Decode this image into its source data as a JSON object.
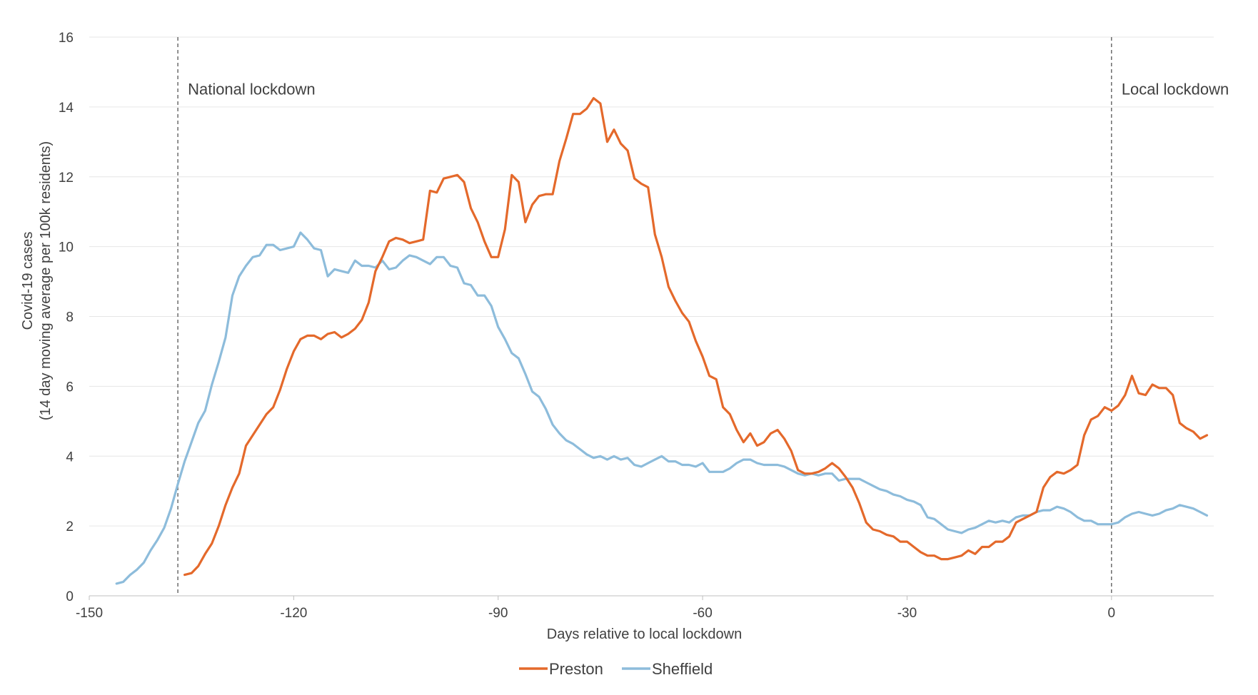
{
  "chart_data": {
    "type": "line",
    "title": "",
    "xlabel": "Days relative to local lockdown",
    "ylabel_line1": "Covid-19 cases",
    "ylabel_line2": "(14 day moving average per 100k residents)",
    "xlim": [
      -150,
      15
    ],
    "ylim": [
      0,
      16
    ],
    "x_ticks": [
      -150,
      -120,
      -90,
      -60,
      -30,
      0
    ],
    "y_ticks": [
      0,
      2,
      4,
      6,
      8,
      10,
      12,
      14,
      16
    ],
    "grid": true,
    "legend_position": "bottom-center",
    "annotations": [
      {
        "x": -137,
        "text": "National lockdown",
        "style": "dashed-vertical-line"
      },
      {
        "x": 0,
        "text": "Local lockdown",
        "style": "dashed-vertical-line"
      }
    ],
    "series": [
      {
        "name": "Preston",
        "color": "#E4692B",
        "points": [
          [
            -136,
            0.6
          ],
          [
            -135,
            0.65
          ],
          [
            -134,
            0.85
          ],
          [
            -133,
            1.2
          ],
          [
            -132,
            1.5
          ],
          [
            -131,
            2.0
          ],
          [
            -130,
            2.6
          ],
          [
            -129,
            3.1
          ],
          [
            -128,
            3.5
          ],
          [
            -127,
            4.3
          ],
          [
            -126,
            4.6
          ],
          [
            -125,
            4.9
          ],
          [
            -124,
            5.2
          ],
          [
            -123,
            5.4
          ],
          [
            -122,
            5.9
          ],
          [
            -121,
            6.5
          ],
          [
            -120,
            7.0
          ],
          [
            -119,
            7.35
          ],
          [
            -118,
            7.45
          ],
          [
            -117,
            7.45
          ],
          [
            -116,
            7.35
          ],
          [
            -115,
            7.5
          ],
          [
            -114,
            7.55
          ],
          [
            -113,
            7.4
          ],
          [
            -112,
            7.5
          ],
          [
            -111,
            7.65
          ],
          [
            -110,
            7.9
          ],
          [
            -109,
            8.4
          ],
          [
            -108,
            9.3
          ],
          [
            -107,
            9.7
          ],
          [
            -106,
            10.15
          ],
          [
            -105,
            10.25
          ],
          [
            -104,
            10.2
          ],
          [
            -103,
            10.1
          ],
          [
            -102,
            10.15
          ],
          [
            -101,
            10.2
          ],
          [
            -100,
            11.6
          ],
          [
            -99,
            11.55
          ],
          [
            -98,
            11.95
          ],
          [
            -97,
            12.0
          ],
          [
            -96,
            12.05
          ],
          [
            -95,
            11.85
          ],
          [
            -94,
            11.1
          ],
          [
            -93,
            10.7
          ],
          [
            -92,
            10.15
          ],
          [
            -91,
            9.7
          ],
          [
            -90,
            9.7
          ],
          [
            -89,
            10.5
          ],
          [
            -88,
            12.05
          ],
          [
            -87,
            11.85
          ],
          [
            -86,
            10.7
          ],
          [
            -85,
            11.2
          ],
          [
            -84,
            11.45
          ],
          [
            -83,
            11.5
          ],
          [
            -82,
            11.5
          ],
          [
            -81,
            12.45
          ],
          [
            -80,
            13.1
          ],
          [
            -79,
            13.8
          ],
          [
            -78,
            13.8
          ],
          [
            -77,
            13.95
          ],
          [
            -76,
            14.25
          ],
          [
            -75,
            14.1
          ],
          [
            -74,
            13.0
          ],
          [
            -73,
            13.35
          ],
          [
            -72,
            12.95
          ],
          [
            -71,
            12.75
          ],
          [
            -70,
            11.95
          ],
          [
            -69,
            11.8
          ],
          [
            -68,
            11.7
          ],
          [
            -67,
            10.35
          ],
          [
            -66,
            9.7
          ],
          [
            -65,
            8.85
          ],
          [
            -64,
            8.45
          ],
          [
            -63,
            8.1
          ],
          [
            -62,
            7.85
          ],
          [
            -61,
            7.3
          ],
          [
            -60,
            6.85
          ],
          [
            -59,
            6.3
          ],
          [
            -58,
            6.2
          ],
          [
            -57,
            5.4
          ],
          [
            -56,
            5.2
          ],
          [
            -55,
            4.75
          ],
          [
            -54,
            4.4
          ],
          [
            -53,
            4.65
          ],
          [
            -52,
            4.3
          ],
          [
            -51,
            4.4
          ],
          [
            -50,
            4.65
          ],
          [
            -49,
            4.75
          ],
          [
            -48,
            4.5
          ],
          [
            -47,
            4.15
          ],
          [
            -46,
            3.6
          ],
          [
            -45,
            3.5
          ],
          [
            -44,
            3.5
          ],
          [
            -43,
            3.55
          ],
          [
            -42,
            3.65
          ],
          [
            -41,
            3.8
          ],
          [
            -40,
            3.65
          ],
          [
            -39,
            3.4
          ],
          [
            -38,
            3.1
          ],
          [
            -37,
            2.65
          ],
          [
            -36,
            2.1
          ],
          [
            -35,
            1.9
          ],
          [
            -34,
            1.85
          ],
          [
            -33,
            1.75
          ],
          [
            -32,
            1.7
          ],
          [
            -31,
            1.55
          ],
          [
            -30,
            1.55
          ],
          [
            -29,
            1.4
          ],
          [
            -28,
            1.25
          ],
          [
            -27,
            1.15
          ],
          [
            -26,
            1.15
          ],
          [
            -25,
            1.05
          ],
          [
            -24,
            1.05
          ],
          [
            -23,
            1.1
          ],
          [
            -22,
            1.15
          ],
          [
            -21,
            1.3
          ],
          [
            -20,
            1.2
          ],
          [
            -19,
            1.4
          ],
          [
            -18,
            1.4
          ],
          [
            -17,
            1.55
          ],
          [
            -16,
            1.55
          ],
          [
            -15,
            1.7
          ],
          [
            -14,
            2.1
          ],
          [
            -13,
            2.2
          ],
          [
            -12,
            2.3
          ],
          [
            -11,
            2.4
          ],
          [
            -10,
            3.1
          ],
          [
            -9,
            3.4
          ],
          [
            -8,
            3.55
          ],
          [
            -7,
            3.5
          ],
          [
            -6,
            3.6
          ],
          [
            -5,
            3.75
          ],
          [
            -4,
            4.6
          ],
          [
            -3,
            5.05
          ],
          [
            -2,
            5.15
          ],
          [
            -1,
            5.4
          ],
          [
            0,
            5.3
          ],
          [
            1,
            5.45
          ],
          [
            2,
            5.75
          ],
          [
            3,
            6.3
          ],
          [
            4,
            5.8
          ],
          [
            5,
            5.75
          ],
          [
            6,
            6.05
          ],
          [
            7,
            5.95
          ],
          [
            8,
            5.95
          ],
          [
            9,
            5.75
          ],
          [
            10,
            4.95
          ],
          [
            11,
            4.8
          ],
          [
            12,
            4.7
          ],
          [
            13,
            4.5
          ],
          [
            14,
            4.6
          ]
        ]
      },
      {
        "name": "Sheffield",
        "color": "#8DBCDB",
        "points": [
          [
            -146,
            0.35
          ],
          [
            -145,
            0.4
          ],
          [
            -144,
            0.6
          ],
          [
            -143,
            0.75
          ],
          [
            -142,
            0.95
          ],
          [
            -141,
            1.3
          ],
          [
            -140,
            1.6
          ],
          [
            -139,
            1.95
          ],
          [
            -138,
            2.5
          ],
          [
            -137,
            3.2
          ],
          [
            -136,
            3.85
          ],
          [
            -135,
            4.4
          ],
          [
            -134,
            4.95
          ],
          [
            -133,
            5.3
          ],
          [
            -132,
            6.05
          ],
          [
            -131,
            6.7
          ],
          [
            -130,
            7.4
          ],
          [
            -129,
            8.6
          ],
          [
            -128,
            9.15
          ],
          [
            -127,
            9.45
          ],
          [
            -126,
            9.7
          ],
          [
            -125,
            9.75
          ],
          [
            -124,
            10.05
          ],
          [
            -123,
            10.05
          ],
          [
            -122,
            9.9
          ],
          [
            -121,
            9.95
          ],
          [
            -120,
            10.0
          ],
          [
            -119,
            10.4
          ],
          [
            -118,
            10.2
          ],
          [
            -117,
            9.95
          ],
          [
            -116,
            9.9
          ],
          [
            -115,
            9.15
          ],
          [
            -114,
            9.35
          ],
          [
            -113,
            9.3
          ],
          [
            -112,
            9.25
          ],
          [
            -111,
            9.6
          ],
          [
            -110,
            9.45
          ],
          [
            -109,
            9.45
          ],
          [
            -108,
            9.4
          ],
          [
            -107,
            9.6
          ],
          [
            -106,
            9.35
          ],
          [
            -105,
            9.4
          ],
          [
            -104,
            9.6
          ],
          [
            -103,
            9.75
          ],
          [
            -102,
            9.7
          ],
          [
            -101,
            9.6
          ],
          [
            -100,
            9.5
          ],
          [
            -99,
            9.7
          ],
          [
            -98,
            9.7
          ],
          [
            -97,
            9.45
          ],
          [
            -96,
            9.4
          ],
          [
            -95,
            8.95
          ],
          [
            -94,
            8.9
          ],
          [
            -93,
            8.6
          ],
          [
            -92,
            8.6
          ],
          [
            -91,
            8.3
          ],
          [
            -90,
            7.7
          ],
          [
            -89,
            7.35
          ],
          [
            -88,
            6.95
          ],
          [
            -87,
            6.8
          ],
          [
            -86,
            6.35
          ],
          [
            -85,
            5.85
          ],
          [
            -84,
            5.7
          ],
          [
            -83,
            5.35
          ],
          [
            -82,
            4.9
          ],
          [
            -81,
            4.65
          ],
          [
            -80,
            4.45
          ],
          [
            -79,
            4.35
          ],
          [
            -78,
            4.2
          ],
          [
            -77,
            4.05
          ],
          [
            -76,
            3.95
          ],
          [
            -75,
            4.0
          ],
          [
            -74,
            3.9
          ],
          [
            -73,
            4.0
          ],
          [
            -72,
            3.9
          ],
          [
            -71,
            3.95
          ],
          [
            -70,
            3.75
          ],
          [
            -69,
            3.7
          ],
          [
            -68,
            3.8
          ],
          [
            -67,
            3.9
          ],
          [
            -66,
            4.0
          ],
          [
            -65,
            3.85
          ],
          [
            -64,
            3.85
          ],
          [
            -63,
            3.75
          ],
          [
            -62,
            3.75
          ],
          [
            -61,
            3.7
          ],
          [
            -60,
            3.8
          ],
          [
            -59,
            3.55
          ],
          [
            -58,
            3.55
          ],
          [
            -57,
            3.55
          ],
          [
            -56,
            3.65
          ],
          [
            -55,
            3.8
          ],
          [
            -54,
            3.9
          ],
          [
            -53,
            3.9
          ],
          [
            -52,
            3.8
          ],
          [
            -51,
            3.75
          ],
          [
            -50,
            3.75
          ],
          [
            -49,
            3.75
          ],
          [
            -48,
            3.7
          ],
          [
            -47,
            3.6
          ],
          [
            -46,
            3.5
          ],
          [
            -45,
            3.45
          ],
          [
            -44,
            3.5
          ],
          [
            -43,
            3.45
          ],
          [
            -42,
            3.5
          ],
          [
            -41,
            3.5
          ],
          [
            -40,
            3.3
          ],
          [
            -39,
            3.35
          ],
          [
            -38,
            3.35
          ],
          [
            -37,
            3.35
          ],
          [
            -36,
            3.25
          ],
          [
            -35,
            3.15
          ],
          [
            -34,
            3.05
          ],
          [
            -33,
            3.0
          ],
          [
            -32,
            2.9
          ],
          [
            -31,
            2.85
          ],
          [
            -30,
            2.75
          ],
          [
            -29,
            2.7
          ],
          [
            -28,
            2.6
          ],
          [
            -27,
            2.25
          ],
          [
            -26,
            2.2
          ],
          [
            -25,
            2.05
          ],
          [
            -24,
            1.9
          ],
          [
            -23,
            1.85
          ],
          [
            -22,
            1.8
          ],
          [
            -21,
            1.9
          ],
          [
            -20,
            1.95
          ],
          [
            -19,
            2.05
          ],
          [
            -18,
            2.15
          ],
          [
            -17,
            2.1
          ],
          [
            -16,
            2.15
          ],
          [
            -15,
            2.1
          ],
          [
            -14,
            2.25
          ],
          [
            -13,
            2.3
          ],
          [
            -12,
            2.3
          ],
          [
            -11,
            2.4
          ],
          [
            -10,
            2.45
          ],
          [
            -9,
            2.45
          ],
          [
            -8,
            2.55
          ],
          [
            -7,
            2.5
          ],
          [
            -6,
            2.4
          ],
          [
            -5,
            2.25
          ],
          [
            -4,
            2.15
          ],
          [
            -3,
            2.15
          ],
          [
            -2,
            2.05
          ],
          [
            -1,
            2.05
          ],
          [
            0,
            2.05
          ],
          [
            1,
            2.1
          ],
          [
            2,
            2.25
          ],
          [
            3,
            2.35
          ],
          [
            4,
            2.4
          ],
          [
            5,
            2.35
          ],
          [
            6,
            2.3
          ],
          [
            7,
            2.35
          ],
          [
            8,
            2.45
          ],
          [
            9,
            2.5
          ],
          [
            10,
            2.6
          ],
          [
            11,
            2.55
          ],
          [
            12,
            2.5
          ],
          [
            13,
            2.4
          ],
          [
            14,
            2.3
          ]
        ]
      }
    ]
  }
}
